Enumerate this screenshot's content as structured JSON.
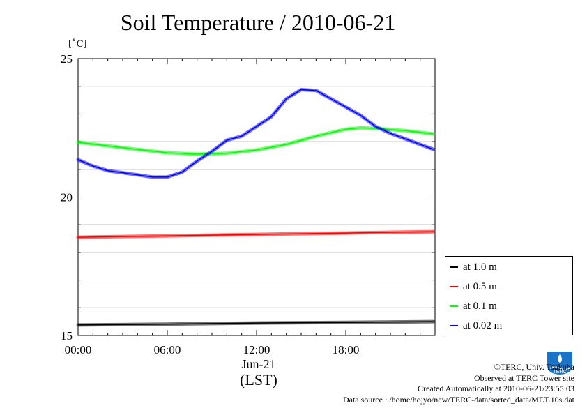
{
  "chart_data": {
    "type": "line",
    "title": "Soil Temperature / 2010-06-21",
    "ylabel": "[˚C]",
    "xlabel": "(LST)",
    "date_label": "Jun-21",
    "ylim": [
      15,
      25
    ],
    "xlim": [
      0,
      24
    ],
    "y_ticks": [
      "15",
      "20",
      "25"
    ],
    "x_ticks": [
      "00:00",
      "06:00",
      "12:00",
      "18:00"
    ],
    "grid": true,
    "legend_position": "right",
    "series": [
      {
        "name": "at 1.0 m",
        "color": "#000000",
        "x": [
          0,
          6,
          12,
          18,
          23.9
        ],
        "y": [
          15.38,
          15.41,
          15.45,
          15.47,
          15.5
        ]
      },
      {
        "name": "at 0.5 m",
        "color": "#ff0000",
        "x": [
          0,
          6,
          12,
          18,
          23.9
        ],
        "y": [
          18.55,
          18.6,
          18.65,
          18.7,
          18.75
        ]
      },
      {
        "name": "at 0.1 m",
        "color": "#00ff00",
        "x": [
          0,
          2,
          4,
          6,
          8,
          10,
          12,
          14,
          16,
          18,
          19,
          20,
          22,
          23.9
        ],
        "y": [
          21.98,
          21.85,
          21.72,
          21.6,
          21.55,
          21.58,
          21.7,
          21.9,
          22.2,
          22.45,
          22.5,
          22.48,
          22.4,
          22.28
        ]
      },
      {
        "name": "at 0.02 m",
        "color": "#0000ff",
        "x": [
          0,
          1,
          2,
          3,
          4,
          5,
          6,
          7,
          8,
          9,
          10,
          11,
          12,
          13,
          14,
          15,
          16,
          17,
          18,
          19,
          20,
          21,
          22,
          23,
          23.9
        ],
        "y": [
          21.35,
          21.12,
          20.95,
          20.88,
          20.8,
          20.72,
          20.72,
          20.9,
          21.3,
          21.65,
          22.05,
          22.2,
          22.55,
          22.9,
          23.55,
          23.88,
          23.85,
          23.55,
          23.25,
          22.95,
          22.55,
          22.3,
          22.1,
          21.9,
          21.72
        ]
      }
    ]
  },
  "footer": {
    "copyright": "©TERC, Univ. Tsukuba",
    "observed": "Observed at TERC Tower site",
    "created": "Created Automatically at 2010-06-21/23:55:03",
    "source": "Data source : /home/hojyo/new/TERC-data/sorted_data/MET.10s.dat"
  },
  "logo_text": "TERC"
}
